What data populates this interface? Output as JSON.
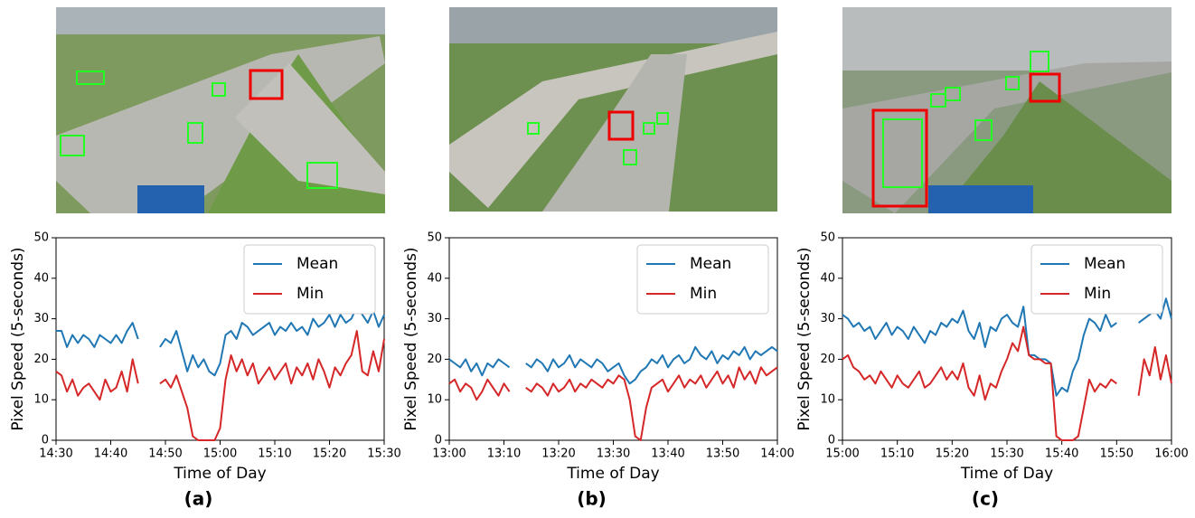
{
  "chart_data": [
    {
      "type": "line",
      "caption": "(a)",
      "x_label": "Time of Day",
      "y_label": "Pixel Speed (5-seconds)",
      "x": [
        "14:30",
        "14:31",
        "14:32",
        "14:33",
        "14:34",
        "14:35",
        "14:36",
        "14:37",
        "14:38",
        "14:39",
        "14:40",
        "14:41",
        "14:42",
        "14:43",
        "14:44",
        "14:45",
        "14:46",
        "14:47",
        "14:48",
        "14:49",
        "14:50",
        "14:51",
        "14:52",
        "14:53",
        "14:54",
        "14:55",
        "14:56",
        "14:57",
        "14:58",
        "14:59",
        "15:00",
        "15:01",
        "15:02",
        "15:03",
        "15:04",
        "15:05",
        "15:06",
        "15:07",
        "15:08",
        "15:09",
        "15:10",
        "15:11",
        "15:12",
        "15:13",
        "15:14",
        "15:15",
        "15:16",
        "15:17",
        "15:18",
        "15:19",
        "15:20",
        "15:21",
        "15:22",
        "15:23",
        "15:24",
        "15:25",
        "15:26",
        "15:27",
        "15:28",
        "15:29",
        "15:30"
      ],
      "series": [
        {
          "name": "Mean",
          "color": "#1f77b4",
          "values": [
            27,
            27,
            23,
            26,
            24,
            26,
            25,
            23,
            26,
            25,
            24,
            26,
            24,
            27,
            29,
            25,
            null,
            null,
            null,
            23,
            25,
            24,
            27,
            22,
            17,
            21,
            18,
            20,
            17,
            16,
            19,
            26,
            27,
            25,
            29,
            28,
            26,
            27,
            28,
            29,
            26,
            28,
            27,
            29,
            27,
            28,
            26,
            30,
            28,
            29,
            31,
            28,
            31,
            29,
            30,
            33,
            31,
            29,
            32,
            28,
            31
          ]
        },
        {
          "name": "Min",
          "color": "#d62728",
          "values": [
            17,
            16,
            12,
            15,
            11,
            13,
            14,
            12,
            10,
            15,
            12,
            13,
            17,
            12,
            20,
            14,
            null,
            null,
            null,
            14,
            15,
            13,
            16,
            12,
            8,
            1,
            0,
            0,
            0,
            0,
            3,
            15,
            21,
            17,
            20,
            16,
            19,
            14,
            16,
            18,
            15,
            17,
            19,
            14,
            18,
            16,
            19,
            15,
            20,
            17,
            13,
            18,
            16,
            19,
            21,
            27,
            17,
            16,
            22,
            17,
            25
          ]
        }
      ],
      "xlim": [
        "14:30",
        "15:30"
      ],
      "xticks": [
        "14:30",
        "14:40",
        "14:50",
        "15:00",
        "15:10",
        "15:20",
        "15:30"
      ],
      "ylim": [
        0,
        50
      ],
      "yticks": [
        0,
        10,
        20,
        30,
        40,
        50
      ],
      "legend": "upper right"
    },
    {
      "type": "line",
      "caption": "(b)",
      "x_label": "Time of Day",
      "y_label": "Pixel Speed (5-seconds)",
      "x": [
        "13:00",
        "13:01",
        "13:02",
        "13:03",
        "13:04",
        "13:05",
        "13:06",
        "13:07",
        "13:08",
        "13:09",
        "13:10",
        "13:11",
        "13:12",
        "13:13",
        "13:14",
        "13:15",
        "13:16",
        "13:17",
        "13:18",
        "13:19",
        "13:20",
        "13:21",
        "13:22",
        "13:23",
        "13:24",
        "13:25",
        "13:26",
        "13:27",
        "13:28",
        "13:29",
        "13:30",
        "13:31",
        "13:32",
        "13:33",
        "13:34",
        "13:35",
        "13:36",
        "13:37",
        "13:38",
        "13:39",
        "13:40",
        "13:41",
        "13:42",
        "13:43",
        "13:44",
        "13:45",
        "13:46",
        "13:47",
        "13:48",
        "13:49",
        "13:50",
        "13:51",
        "13:52",
        "13:53",
        "13:54",
        "13:55",
        "13:56",
        "13:57",
        "13:58",
        "13:59",
        "14:00"
      ],
      "series": [
        {
          "name": "Mean",
          "color": "#1f77b4",
          "values": [
            20,
            19,
            18,
            20,
            17,
            19,
            16,
            19,
            18,
            20,
            19,
            18,
            null,
            null,
            19,
            18,
            20,
            19,
            17,
            20,
            18,
            19,
            21,
            18,
            20,
            19,
            18,
            20,
            19,
            17,
            18,
            19,
            16,
            14,
            15,
            17,
            18,
            20,
            19,
            21,
            18,
            20,
            21,
            19,
            20,
            23,
            21,
            20,
            22,
            19,
            21,
            20,
            22,
            21,
            23,
            20,
            22,
            21,
            22,
            23,
            22
          ]
        },
        {
          "name": "Min",
          "color": "#d62728",
          "values": [
            14,
            15,
            12,
            14,
            13,
            10,
            12,
            15,
            13,
            11,
            14,
            12,
            null,
            null,
            13,
            12,
            14,
            13,
            11,
            14,
            12,
            13,
            15,
            12,
            14,
            13,
            15,
            14,
            13,
            15,
            14,
            16,
            15,
            10,
            1,
            0,
            8,
            13,
            14,
            15,
            12,
            14,
            16,
            13,
            15,
            14,
            16,
            13,
            15,
            17,
            14,
            16,
            13,
            18,
            15,
            17,
            14,
            18,
            16,
            17,
            18
          ]
        }
      ],
      "xlim": [
        "13:00",
        "14:00"
      ],
      "xticks": [
        "13:00",
        "13:10",
        "13:20",
        "13:30",
        "13:40",
        "13:50",
        "14:00"
      ],
      "ylim": [
        0,
        50
      ],
      "yticks": [
        0,
        10,
        20,
        30,
        40,
        50
      ],
      "legend": "upper right"
    },
    {
      "type": "line",
      "caption": "(c)",
      "x_label": "Time of Day",
      "y_label": "Pixel Speed (5-seconds)",
      "x": [
        "15:00",
        "15:01",
        "15:02",
        "15:03",
        "15:04",
        "15:05",
        "15:06",
        "15:07",
        "15:08",
        "15:09",
        "15:10",
        "15:11",
        "15:12",
        "15:13",
        "15:14",
        "15:15",
        "15:16",
        "15:17",
        "15:18",
        "15:19",
        "15:20",
        "15:21",
        "15:22",
        "15:23",
        "15:24",
        "15:25",
        "15:26",
        "15:27",
        "15:28",
        "15:29",
        "15:30",
        "15:31",
        "15:32",
        "15:33",
        "15:34",
        "15:35",
        "15:36",
        "15:37",
        "15:38",
        "15:39",
        "15:40",
        "15:41",
        "15:42",
        "15:43",
        "15:44",
        "15:45",
        "15:46",
        "15:47",
        "15:48",
        "15:49",
        "15:50",
        "15:51",
        "15:52",
        "15:53",
        "15:54",
        "15:55",
        "15:56",
        "15:57",
        "15:58",
        "15:59",
        "16:00"
      ],
      "series": [
        {
          "name": "Mean",
          "color": "#1f77b4",
          "values": [
            31,
            30,
            28,
            29,
            27,
            28,
            25,
            27,
            29,
            26,
            28,
            27,
            25,
            28,
            26,
            24,
            27,
            26,
            29,
            28,
            30,
            29,
            32,
            27,
            25,
            29,
            23,
            28,
            27,
            30,
            31,
            29,
            28,
            33,
            21,
            21,
            20,
            20,
            19,
            11,
            13,
            12,
            17,
            20,
            26,
            30,
            29,
            27,
            31,
            28,
            29,
            null,
            null,
            null,
            29,
            30,
            31,
            32,
            30,
            35,
            30
          ]
        },
        {
          "name": "Min",
          "color": "#d62728",
          "values": [
            20,
            21,
            18,
            17,
            15,
            16,
            14,
            17,
            15,
            13,
            16,
            14,
            13,
            15,
            17,
            13,
            14,
            16,
            18,
            15,
            17,
            15,
            19,
            13,
            11,
            16,
            10,
            14,
            13,
            17,
            20,
            24,
            22,
            28,
            21,
            20,
            20,
            19,
            19,
            1,
            0,
            0,
            0,
            1,
            8,
            15,
            12,
            14,
            13,
            15,
            14,
            null,
            null,
            null,
            11,
            20,
            16,
            23,
            15,
            21,
            14
          ]
        }
      ],
      "xlim": [
        "15:00",
        "16:00"
      ],
      "xticks": [
        "15:00",
        "15:10",
        "15:20",
        "15:30",
        "15:40",
        "15:50",
        "16:00"
      ],
      "ylim": [
        0,
        50
      ],
      "yticks": [
        0,
        10,
        20,
        30,
        40,
        50
      ],
      "legend": "upper right"
    }
  ]
}
